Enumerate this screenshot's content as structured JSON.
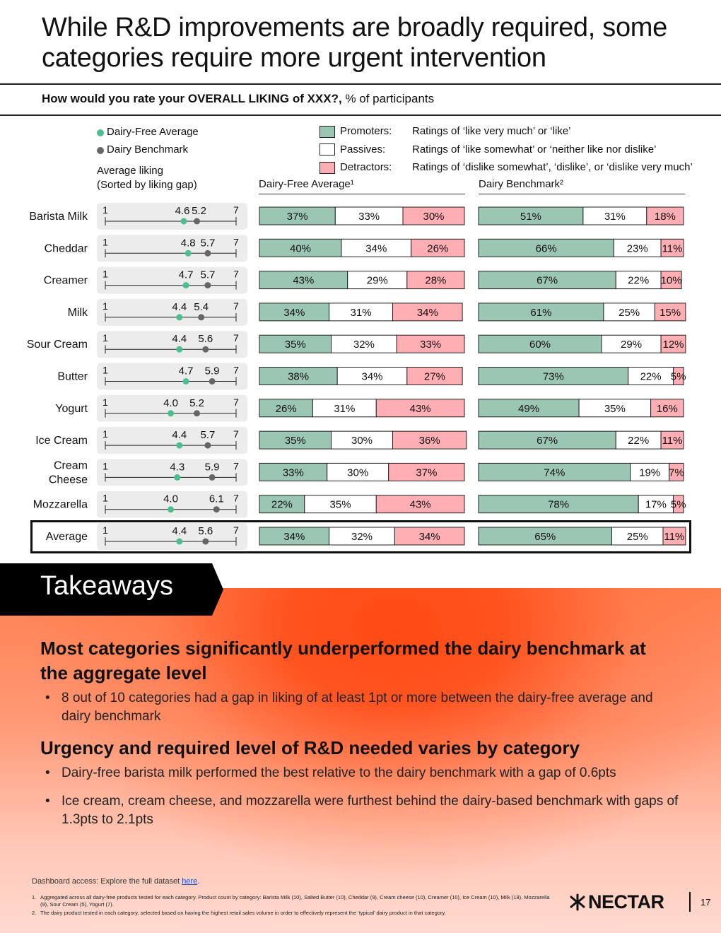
{
  "title": "While R&D improvements are broadly required, some categories require more urgent intervention",
  "question": {
    "bold": "How would you rate your OVERALL LIKING of XXX?,",
    "rest": " % of participants"
  },
  "legend": {
    "dot_dairy_free": "Dairy-Free Average",
    "dot_dairy": "Dairy Benchmark",
    "promoters_label": "Promoters:",
    "promoters_desc": "Ratings of ‘like very much’ or ‘like’",
    "passives_label": "Passives:",
    "passives_desc": "Ratings of ‘like somewhat’ or ‘neither like nor dislike’",
    "detractors_label": "Detractors:",
    "detractors_desc": "Ratings of ‘dislike somewhat’, ‘dislike’, or ‘dislike very much’"
  },
  "headers": {
    "avg_liking_line1": "Average liking",
    "avg_liking_line2": "(Sorted by liking gap)",
    "dairy_free": "Dairy-Free Average¹",
    "dairy_bench": "Dairy Benchmark²"
  },
  "colors": {
    "promoter": "#9cc6b4",
    "passive": "#ffffff",
    "detractor": "#ffaeb4",
    "dot_dairy_free": "#4bbf91",
    "dot_dairy": "#666666",
    "row_bg": "#ececec"
  },
  "chart_data": {
    "type": "bar",
    "scale_min": 1,
    "scale_max": 7,
    "categories": [
      "Barista Milk",
      "Cheddar",
      "Creamer",
      "Milk",
      "Sour Cream",
      "Butter",
      "Yogurt",
      "Ice Cream",
      "Cream Cheese",
      "Mozzarella",
      "Average"
    ],
    "avg_liking": {
      "dairy_free": [
        4.6,
        4.8,
        4.7,
        4.4,
        4.4,
        4.7,
        4.0,
        4.4,
        4.3,
        4.0,
        4.4
      ],
      "dairy": [
        5.2,
        5.7,
        5.7,
        5.4,
        5.6,
        5.9,
        5.2,
        5.7,
        5.9,
        6.1,
        5.6
      ]
    },
    "series": [
      {
        "name": "Dairy-Free Average¹",
        "promoters": [
          37,
          40,
          43,
          34,
          35,
          38,
          26,
          35,
          33,
          22,
          34
        ],
        "passives": [
          33,
          34,
          29,
          31,
          32,
          34,
          31,
          30,
          30,
          35,
          32
        ],
        "detractors": [
          30,
          26,
          28,
          34,
          33,
          27,
          43,
          36,
          37,
          43,
          34
        ]
      },
      {
        "name": "Dairy Benchmark²",
        "promoters": [
          51,
          66,
          67,
          61,
          60,
          73,
          49,
          67,
          74,
          78,
          65
        ],
        "passives": [
          31,
          23,
          22,
          25,
          29,
          22,
          35,
          22,
          19,
          17,
          25
        ],
        "detractors": [
          18,
          11,
          10,
          15,
          12,
          5,
          16,
          11,
          7,
          5,
          11
        ]
      }
    ]
  },
  "takeaways": {
    "label": "Takeaways",
    "heading1": "Most categories significantly underperformed the dairy benchmark at the aggregate level",
    "bullet1": "8 out of 10 categories had a gap in liking of at least 1pt or more between the dairy-free average and dairy benchmark",
    "heading2": "Urgency and required level of R&D needed varies by category",
    "bullet2": "Dairy-free barista milk performed the best relative to the dairy benchmark with a gap of 0.6pts",
    "bullet3": "Ice cream, cream cheese, and mozzarella were furthest behind the dairy-based benchmark with gaps of 1.3pts to 2.1pts"
  },
  "footer": {
    "dash_text": "Dashboard access: Explore the full dataset ",
    "dash_link": "here",
    "dash_end": ".",
    "fn1_num": "1.",
    "fn1": "Aggregated across all dairy-free products tested for each category. Product count by category: Barista Milk (10), Salted Butter (10), Cheddar (9), Cream cheese (10), Creamer (10), Ice Cream (10), Milk (18), Mozzarella (9), Sour Cream (5), Yogurt (7).",
    "fn2_num": "2.",
    "fn2": "The dairy product tested in each category, selected based on having the highest retail sales volume in order to effectively represent the ‘typical’ dairy product in that category.",
    "logo": "NECTAR",
    "page": "17"
  }
}
